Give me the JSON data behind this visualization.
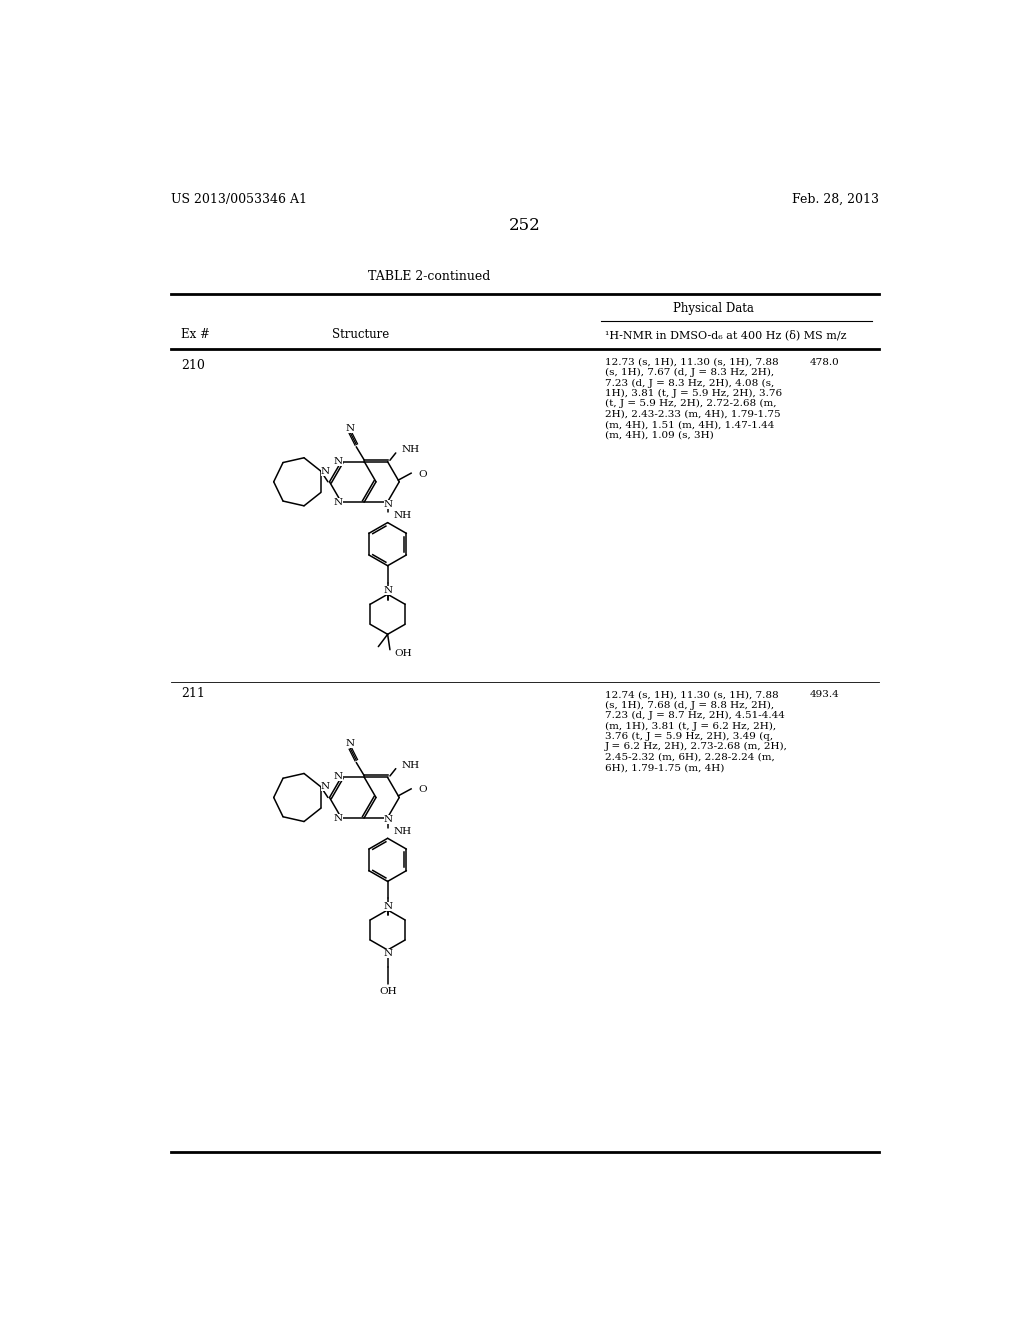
{
  "background_color": "#ffffff",
  "page_number": "252",
  "header_left": "US 2013/0053346 A1",
  "header_right": "Feb. 28, 2013",
  "table_title": "TABLE 2-continued",
  "col_headers": [
    "Ex #",
    "Structure",
    "¹H-NMR in DMSO-d₆ at 400 Hz (δ) MS m/z"
  ],
  "physical_data_label": "Physical Data",
  "rows": [
    {
      "ex_num": "210",
      "nmr_text": "12.73 (s, 1H), 11.30 (s, 1H), 7.88\n(s, 1H), 7.67 (d, J = 8.3 Hz, 2H),\n7.23 (d, J = 8.3 Hz, 2H), 4.08 (s,\n1H), 3.81 (t, J = 5.9 Hz, 2H), 3.76\n(t, J = 5.9 Hz, 2H), 2.72-2.68 (m,\n2H), 2.43-2.33 (m, 4H), 1.79-1.75\n(m, 4H), 1.51 (m, 4H), 1.47-1.44\n(m, 4H), 1.09 (s, 3H)",
      "ms": "478.0"
    },
    {
      "ex_num": "211",
      "nmr_text": "12.74 (s, 1H), 11.30 (s, 1H), 7.88\n(s, 1H), 7.68 (d, J = 8.8 Hz, 2H),\n7.23 (d, J = 8.7 Hz, 2H), 4.51-4.44\n(m, 1H), 3.81 (t, J = 6.2 Hz, 2H),\n3.76 (t, J = 5.9 Hz, 2H), 3.49 (q,\nJ = 6.2 Hz, 2H), 2.73-2.68 (m, 2H),\n2.45-2.32 (m, 6H), 2.28-2.24 (m,\n6H), 1.79-1.75 (m, 4H)",
      "ms": "493.4"
    }
  ]
}
